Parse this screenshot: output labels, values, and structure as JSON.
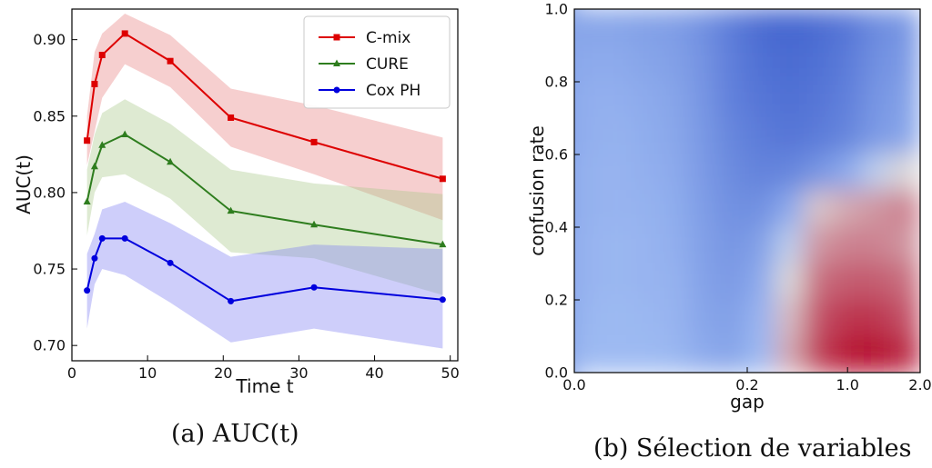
{
  "chart_data": [
    {
      "type": "line",
      "caption": "(a) AUC(t)",
      "xlabel": "Time t",
      "ylabel": "AUC(t)",
      "xlim": [
        0,
        51
      ],
      "ylim": [
        0.69,
        0.92
      ],
      "xticks": [
        "0",
        "10",
        "20",
        "30",
        "40",
        "50"
      ],
      "xtick_values": [
        0,
        10,
        20,
        30,
        40,
        50
      ],
      "yticks": [
        "0.70",
        "0.75",
        "0.80",
        "0.85",
        "0.90"
      ],
      "ytick_values": [
        0.7,
        0.75,
        0.8,
        0.85,
        0.9
      ],
      "legend_position": "top-right",
      "x": [
        2,
        3,
        4,
        7,
        13,
        21,
        32,
        49
      ],
      "series": [
        {
          "name": "C-mix",
          "color": "#dd0000",
          "band_color": "#e88080",
          "marker": "square",
          "values": [
            0.834,
            0.871,
            0.89,
            0.904,
            0.886,
            0.849,
            0.833,
            0.809
          ],
          "lower": [
            0.818,
            0.84,
            0.862,
            0.884,
            0.869,
            0.83,
            0.812,
            0.782
          ],
          "upper": [
            0.85,
            0.892,
            0.904,
            0.917,
            0.903,
            0.868,
            0.857,
            0.836
          ]
        },
        {
          "name": "CURE",
          "color": "#2e7d1e",
          "band_color": "#a9c98a",
          "marker": "triangle",
          "values": [
            0.794,
            0.817,
            0.831,
            0.838,
            0.82,
            0.788,
            0.779,
            0.766
          ],
          "lower": [
            0.772,
            0.8,
            0.81,
            0.812,
            0.796,
            0.761,
            0.757,
            0.733
          ],
          "upper": [
            0.815,
            0.838,
            0.852,
            0.861,
            0.845,
            0.815,
            0.806,
            0.799
          ]
        },
        {
          "name": "Cox PH",
          "color": "#0000dd",
          "band_color": "#7f7ff2",
          "marker": "circle",
          "values": [
            0.736,
            0.757,
            0.77,
            0.77,
            0.754,
            0.729,
            0.738,
            0.73
          ],
          "lower": [
            0.711,
            0.74,
            0.75,
            0.746,
            0.728,
            0.702,
            0.711,
            0.698
          ],
          "upper": [
            0.76,
            0.773,
            0.789,
            0.794,
            0.78,
            0.758,
            0.766,
            0.763
          ]
        }
      ]
    },
    {
      "type": "heatmap",
      "caption": "(b) Sélection de variables",
      "xlabel": "gap",
      "ylabel": "confusion rate",
      "xticks": [
        "0.0",
        "0.2",
        "1.0",
        "2.0"
      ],
      "yticks": [
        "0.0",
        "0.2",
        "0.4",
        "0.6",
        "0.8",
        "1.0"
      ],
      "ylim": [
        0,
        1
      ],
      "color_low": "#3a5ccc",
      "color_mid": "#dddddd",
      "color_high": "#b40426",
      "grid_columns": 12,
      "grid_rows": 10,
      "values_note_rows_top_to_bottom": [
        [
          0.28,
          0.28,
          0.26,
          0.25,
          0.2,
          0.12,
          0.06,
          0.04,
          0.06,
          0.1,
          0.18,
          0.22
        ],
        [
          0.3,
          0.3,
          0.28,
          0.26,
          0.21,
          0.13,
          0.08,
          0.06,
          0.08,
          0.12,
          0.2,
          0.24
        ],
        [
          0.32,
          0.32,
          0.3,
          0.28,
          0.22,
          0.14,
          0.1,
          0.08,
          0.1,
          0.14,
          0.22,
          0.26
        ],
        [
          0.32,
          0.33,
          0.31,
          0.29,
          0.23,
          0.16,
          0.12,
          0.1,
          0.12,
          0.16,
          0.24,
          0.28
        ],
        [
          0.33,
          0.34,
          0.32,
          0.3,
          0.24,
          0.18,
          0.15,
          0.16,
          0.22,
          0.3,
          0.46,
          0.56
        ],
        [
          0.33,
          0.34,
          0.33,
          0.31,
          0.25,
          0.2,
          0.2,
          0.3,
          0.6,
          0.66,
          0.7,
          0.74
        ],
        [
          0.34,
          0.35,
          0.34,
          0.32,
          0.26,
          0.22,
          0.26,
          0.46,
          0.7,
          0.74,
          0.74,
          0.7
        ],
        [
          0.34,
          0.35,
          0.34,
          0.33,
          0.27,
          0.24,
          0.3,
          0.56,
          0.78,
          0.82,
          0.82,
          0.78
        ],
        [
          0.35,
          0.36,
          0.35,
          0.34,
          0.28,
          0.26,
          0.34,
          0.62,
          0.84,
          0.9,
          0.9,
          0.84
        ],
        [
          0.36,
          0.36,
          0.36,
          0.35,
          0.3,
          0.28,
          0.36,
          0.66,
          0.88,
          0.96,
          0.98,
          0.92
        ]
      ]
    }
  ]
}
